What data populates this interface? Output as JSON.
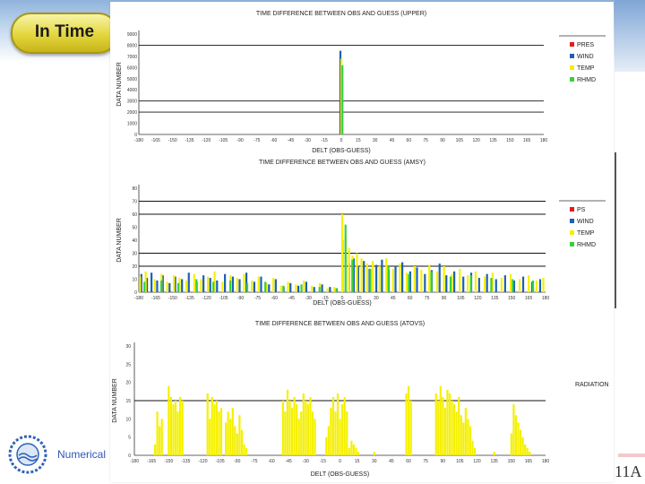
{
  "header": {
    "title": "In Time"
  },
  "footer": {
    "text": "Numerical",
    "slide_number": "11A"
  },
  "colors": {
    "pres": "#e41a1c",
    "wind": "#1f5fb4",
    "temp": "#f5f000",
    "rhmd": "#37d13a",
    "ref": "#111111"
  },
  "chart_data": [
    {
      "type": "bar",
      "title": "TIME DIFFERENCE BETWEEN OBS AND GUESS (UPPER)",
      "xlabel": "DELT (OBS-GUESS)",
      "ylabel": "DATA NUMBER",
      "x_ticks": [
        "-180",
        "-165",
        "-150",
        "-135",
        "-120",
        "-105",
        "-90",
        "-75",
        "-60",
        "-45",
        "-30",
        "-15",
        "0",
        "15",
        "30",
        "45",
        "60",
        "75",
        "90",
        "105",
        "120",
        "135",
        "150",
        "165",
        "180"
      ],
      "y_ticks": [
        "0",
        "1000",
        "2000",
        "3000",
        "4000",
        "5000",
        "6000",
        "7000",
        "8000",
        "9000"
      ],
      "ylim": [
        0,
        9000
      ],
      "ref_lines": [
        2000,
        3000,
        8000
      ],
      "legend": [
        "PRES",
        "WIND",
        "TEMP",
        "RHMD"
      ],
      "series": [
        {
          "name": "WIND",
          "color": "wind",
          "bars": [
            [
              0,
              7500
            ]
          ]
        },
        {
          "name": "TEMP",
          "color": "temp",
          "bars": [
            [
              0,
              6800
            ]
          ]
        },
        {
          "name": "RHMD",
          "color": "rhmd",
          "bars": [
            [
              0,
              6200
            ]
          ]
        }
      ]
    },
    {
      "type": "bar",
      "title": "TIME DIFFERENCE BETWEEN OBS AND GUESS (AMSY)",
      "xlabel": "DELT (OBS-GUESS)",
      "ylabel": "DATA NUMBER",
      "x_ticks": [
        "-180",
        "-165",
        "-150",
        "-135",
        "-120",
        "-105",
        "-90",
        "-75",
        "-60",
        "-45",
        "-30",
        "-15",
        "0",
        "15",
        "30",
        "45",
        "60",
        "75",
        "90",
        "105",
        "120",
        "135",
        "150",
        "165",
        "180"
      ],
      "y_ticks": [
        "0",
        "10",
        "20",
        "30",
        "40",
        "50",
        "60",
        "70",
        "80"
      ],
      "ylim": [
        0,
        80
      ],
      "ref_lines": [
        20,
        30,
        60,
        70
      ],
      "legend": [
        "PS",
        "WIND",
        "TEMP",
        "RHMD"
      ],
      "series": [
        {
          "name": "WIND",
          "color": "wind",
          "bars": [
            [
              -177,
              14
            ],
            [
              -172,
              11
            ],
            [
              -168,
              15
            ],
            [
              -163,
              9
            ],
            [
              -158,
              13
            ],
            [
              -152,
              7
            ],
            [
              -147,
              12
            ],
            [
              -141,
              10
            ],
            [
              -135,
              15
            ],
            [
              -128,
              8
            ],
            [
              -122,
              13
            ],
            [
              -116,
              11
            ],
            [
              -110,
              9
            ],
            [
              -103,
              14
            ],
            [
              -96,
              12
            ],
            [
              -90,
              10
            ],
            [
              -84,
              15
            ],
            [
              -77,
              8
            ],
            [
              -71,
              12
            ],
            [
              -64,
              6
            ],
            [
              -58,
              10
            ],
            [
              -51,
              4
            ],
            [
              -45,
              7
            ],
            [
              -38,
              5
            ],
            [
              -31,
              8
            ],
            [
              -24,
              4
            ],
            [
              -17,
              6
            ],
            [
              -10,
              4
            ],
            [
              -4,
              3
            ],
            [
              1,
              40
            ],
            [
              4,
              28
            ],
            [
              7,
              22
            ],
            [
              11,
              26
            ],
            [
              15,
              20
            ],
            [
              20,
              24
            ],
            [
              25,
              18
            ],
            [
              31,
              21
            ],
            [
              36,
              25
            ],
            [
              42,
              17
            ],
            [
              48,
              20
            ],
            [
              54,
              23
            ],
            [
              61,
              16
            ],
            [
              67,
              19
            ],
            [
              74,
              14
            ],
            [
              80,
              17
            ],
            [
              87,
              22
            ],
            [
              93,
              13
            ],
            [
              100,
              16
            ],
            [
              108,
              12
            ],
            [
              115,
              15
            ],
            [
              122,
              11
            ],
            [
              129,
              14
            ],
            [
              137,
              10
            ],
            [
              145,
              13
            ],
            [
              153,
              9
            ],
            [
              161,
              12
            ],
            [
              169,
              8
            ],
            [
              176,
              10
            ]
          ]
        },
        {
          "name": "TEMP",
          "color": "temp",
          "bars": [
            [
              -179,
              12
            ],
            [
              -174,
              16
            ],
            [
              -166,
              10
            ],
            [
              -160,
              14
            ],
            [
              -155,
              8
            ],
            [
              -149,
              13
            ],
            [
              -144,
              11
            ],
            [
              -138,
              9
            ],
            [
              -131,
              14
            ],
            [
              -125,
              10
            ],
            [
              -119,
              12
            ],
            [
              -113,
              16
            ],
            [
              -106,
              8
            ],
            [
              -99,
              13
            ],
            [
              -93,
              11
            ],
            [
              -87,
              14
            ],
            [
              -80,
              9
            ],
            [
              -74,
              12
            ],
            [
              -67,
              7
            ],
            [
              -61,
              11
            ],
            [
              -54,
              5
            ],
            [
              -48,
              8
            ],
            [
              -41,
              6
            ],
            [
              -34,
              9
            ],
            [
              -27,
              5
            ],
            [
              -20,
              7
            ],
            [
              -13,
              3
            ],
            [
              -7,
              4
            ],
            [
              0,
              60
            ],
            [
              3,
              42
            ],
            [
              6,
              34
            ],
            [
              9,
              28
            ],
            [
              13,
              30
            ],
            [
              17,
              26
            ],
            [
              22,
              22
            ],
            [
              27,
              24
            ],
            [
              33,
              20
            ],
            [
              39,
              26
            ],
            [
              45,
              18
            ],
            [
              51,
              22
            ],
            [
              57,
              15
            ],
            [
              64,
              20
            ],
            [
              70,
              17
            ],
            [
              77,
              21
            ],
            [
              84,
              16
            ],
            [
              90,
              20
            ],
            [
              97,
              14
            ],
            [
              104,
              18
            ],
            [
              111,
              13
            ],
            [
              118,
              16
            ],
            [
              126,
              12
            ],
            [
              133,
              15
            ],
            [
              141,
              11
            ],
            [
              149,
              14
            ],
            [
              157,
              10
            ],
            [
              165,
              13
            ],
            [
              172,
              9
            ],
            [
              178,
              11
            ]
          ]
        },
        {
          "name": "RHMD",
          "color": "rhmd",
          "bars": [
            [
              -176,
              8
            ],
            [
              -161,
              9
            ],
            [
              -146,
              7
            ],
            [
              -130,
              10
            ],
            [
              -115,
              8
            ],
            [
              -100,
              9
            ],
            [
              -85,
              7
            ],
            [
              -69,
              8
            ],
            [
              -53,
              5
            ],
            [
              -37,
              6
            ],
            [
              -21,
              4
            ],
            [
              -6,
              3
            ],
            [
              2,
              52
            ],
            [
              8,
              25
            ],
            [
              24,
              18
            ],
            [
              40,
              20
            ],
            [
              58,
              14
            ],
            [
              78,
              16
            ],
            [
              95,
              12
            ],
            [
              113,
              13
            ],
            [
              131,
              11
            ],
            [
              150,
              10
            ],
            [
              168,
              9
            ]
          ]
        }
      ]
    },
    {
      "type": "bar",
      "title": "TIME DIFFERENCE BETWEEN OBS AND GUESS (ATOVS)",
      "xlabel": "DELT (OBS-GUESS)",
      "ylabel": "DATA NUMBER",
      "x_ticks": [
        "-180",
        "-165",
        "-150",
        "-135",
        "-120",
        "-105",
        "-90",
        "-75",
        "-60",
        "-45",
        "-30",
        "-15",
        "0",
        "15",
        "30",
        "45",
        "60",
        "75",
        "90",
        "105",
        "120",
        "135",
        "150",
        "165",
        "180"
      ],
      "y_ticks": [
        "0",
        "5",
        "10",
        "15",
        "20",
        "25",
        "30"
      ],
      "ylim": [
        0,
        30
      ],
      "ref_lines": [
        15
      ],
      "legend": [
        "RADIATION"
      ],
      "series": [
        {
          "name": "RADIATION",
          "color": "temp",
          "bars": [
            [
              -162,
              3
            ],
            [
              -160,
              12
            ],
            [
              -158,
              8
            ],
            [
              -156,
              10
            ],
            [
              -150,
              19
            ],
            [
              -148,
              16
            ],
            [
              -146,
              14
            ],
            [
              -144,
              15
            ],
            [
              -142,
              12
            ],
            [
              -140,
              16
            ],
            [
              -138,
              15
            ],
            [
              -116,
              17
            ],
            [
              -114,
              10
            ],
            [
              -112,
              16
            ],
            [
              -110,
              14
            ],
            [
              -108,
              15
            ],
            [
              -106,
              12
            ],
            [
              -104,
              13
            ],
            [
              -100,
              9
            ],
            [
              -98,
              12
            ],
            [
              -96,
              10
            ],
            [
              -94,
              13
            ],
            [
              -92,
              8
            ],
            [
              -90,
              6
            ],
            [
              -88,
              11
            ],
            [
              -86,
              7
            ],
            [
              -84,
              3
            ],
            [
              -82,
              2
            ],
            [
              -50,
              15
            ],
            [
              -48,
              12
            ],
            [
              -46,
              18
            ],
            [
              -44,
              15
            ],
            [
              -42,
              13
            ],
            [
              -40,
              16
            ],
            [
              -38,
              14
            ],
            [
              -36,
              10
            ],
            [
              -34,
              12
            ],
            [
              -32,
              17
            ],
            [
              -30,
              15
            ],
            [
              -28,
              14
            ],
            [
              -26,
              16
            ],
            [
              -24,
              12
            ],
            [
              -22,
              10
            ],
            [
              -12,
              5
            ],
            [
              -10,
              8
            ],
            [
              -8,
              13
            ],
            [
              -6,
              16
            ],
            [
              -4,
              12
            ],
            [
              -2,
              17
            ],
            [
              0,
              10
            ],
            [
              2,
              14
            ],
            [
              4,
              16
            ],
            [
              6,
              12
            ],
            [
              8,
              2
            ],
            [
              10,
              4
            ],
            [
              12,
              3
            ],
            [
              14,
              2
            ],
            [
              16,
              1
            ],
            [
              30,
              1
            ],
            [
              58,
              17
            ],
            [
              60,
              19
            ],
            [
              62,
              15
            ],
            [
              84,
              17
            ],
            [
              86,
              15
            ],
            [
              88,
              19
            ],
            [
              90,
              16
            ],
            [
              92,
              13
            ],
            [
              94,
              18
            ],
            [
              96,
              17
            ],
            [
              98,
              15
            ],
            [
              100,
              14
            ],
            [
              102,
              12
            ],
            [
              104,
              16
            ],
            [
              106,
              11
            ],
            [
              108,
              9
            ],
            [
              110,
              13
            ],
            [
              112,
              10
            ],
            [
              114,
              8
            ],
            [
              116,
              4
            ],
            [
              118,
              2
            ],
            [
              135,
              1
            ],
            [
              150,
              6
            ],
            [
              152,
              14
            ],
            [
              154,
              11
            ],
            [
              156,
              9
            ],
            [
              158,
              7
            ],
            [
              160,
              5
            ],
            [
              162,
              3
            ],
            [
              164,
              2
            ],
            [
              166,
              1
            ]
          ]
        }
      ]
    }
  ]
}
